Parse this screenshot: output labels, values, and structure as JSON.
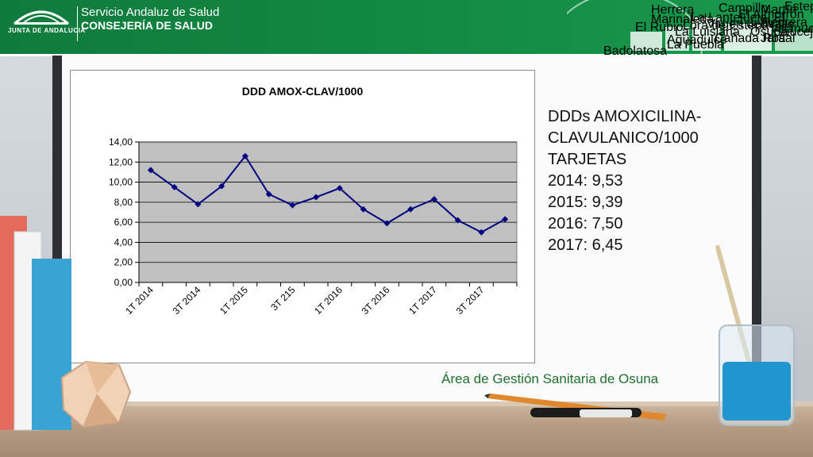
{
  "header": {
    "junta_label": "JUNTA DE ANDALUCIA",
    "org_line1": "Servicio Andaluz de Salud",
    "org_line2": "CONSEJERÍA DE SALUD",
    "art_places": [
      "Campillo",
      "Martín de la Jara",
      "Estepa",
      "El Almorrón",
      "La Lantejuela",
      "Virgen del Valle",
      "Pedrera",
      "El Saucejo",
      "Marinaleda",
      "Lora de Estepa",
      "La Luisiana",
      "Osuna",
      "Aguadulce",
      "El Rubio",
      "La Puebla",
      "Herrera",
      "Villanueva",
      "Cañada Rosal",
      "Badolatosa"
    ]
  },
  "side": {
    "heading_line1": "DDDs AMOXICILINA-",
    "heading_line2": "CLAVULANICO/1000",
    "heading_line3": "TARJETAS",
    "years": [
      "2014: 9,53",
      "2015: 9,39",
      "2016: 7,50",
      "2017: 6,45"
    ]
  },
  "footer": {
    "area": "Área de Gestión Sanitaria de Osuna"
  },
  "colors": {
    "header_green": "#138a45",
    "series": "#000080",
    "plot_bg": "#c0c0c0",
    "footer_green": "#1f6f2e"
  },
  "chart_data": {
    "type": "line",
    "title": "DDD AMOX-CLAV/1000",
    "xlabel": "",
    "ylabel": "",
    "ylim": [
      0,
      14
    ],
    "ytick_labels": [
      "0,00",
      "2,00",
      "4,00",
      "6,00",
      "8,00",
      "10,00",
      "12,00",
      "14,00"
    ],
    "x_tick_labels": [
      "1T 2014",
      "3T 2014",
      "1T 2015",
      "3T 215",
      "1T 2016",
      "3T 2016",
      "1T 2017",
      "3T 2017"
    ],
    "grid": true,
    "legend": "none",
    "series": [
      {
        "values": [
          11.2,
          9.5,
          7.8,
          9.6,
          12.6,
          8.8,
          7.7,
          8.5,
          9.4,
          7.3,
          5.9,
          7.3,
          8.3,
          6.2,
          5.0,
          6.3
        ]
      }
    ]
  }
}
